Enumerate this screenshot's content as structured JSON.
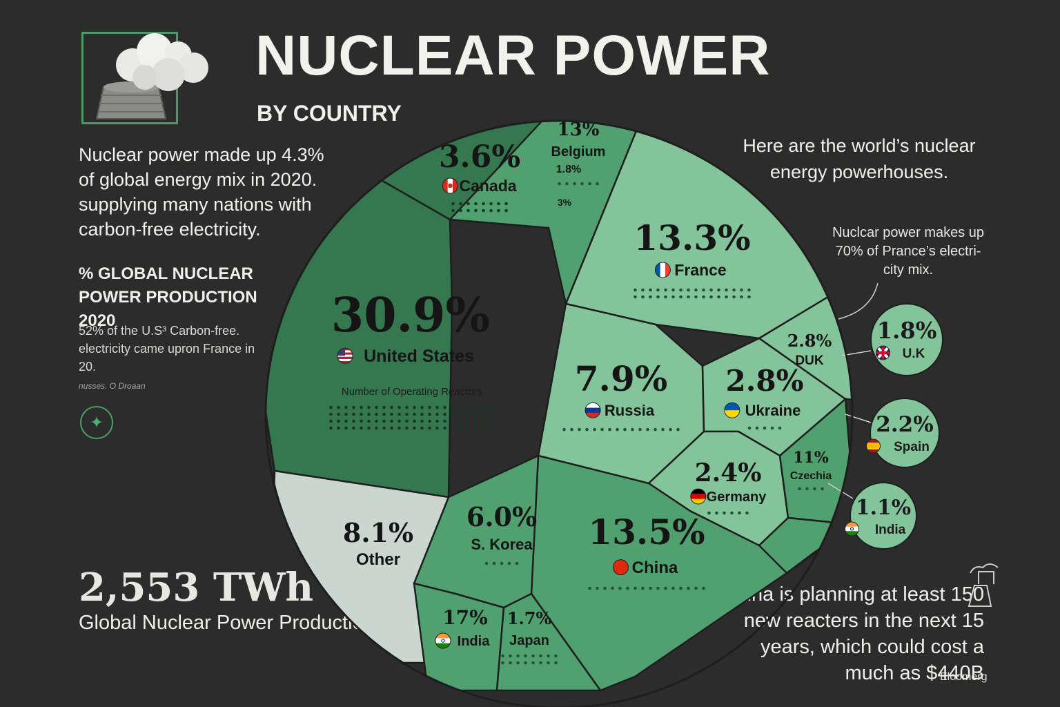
{
  "header": {
    "title": "NUCLEAR POWER",
    "subtitle": "BY COUNTRY"
  },
  "left_panel": {
    "intro": "Nuclear power made up 4.3% of global energy mix in 2020. supplying many nations with carbon-free electricity.",
    "section_heading": "% GLOBAL NUCLEAR POWER PRODUCTION 2020",
    "fact": "52% of the U.S³ Carbon-free. electricity came upron France in 20.",
    "fact_source": "nusses. O Droaan",
    "total_value": "2,553 TWh",
    "total_label": "Global Nuclear Power Production"
  },
  "right_panel": {
    "heading": "Here are the world’s nuclear energy powerhouses.",
    "france_note": "Nuclcar power makes up 70% of Prance’s electri- city mix.",
    "china_note": "China is planning at least 150 new reacters in the next 15 years, which could cost a much as $440B",
    "source": "Eloomerg"
  },
  "colors": {
    "background": "#2c2c2c",
    "dark_green": "#35774e",
    "mid_green": "#50a070",
    "light_green": "#84c49b",
    "other_gray": "#ccd6d0",
    "border": "#1e1e1e"
  },
  "icons": [
    "cooling-tower-icon",
    "lightning-bolt-icon",
    "reactor-plant-icon"
  ],
  "chart_data": {
    "type": "voronoi-treemap",
    "title": "NUCLEAR POWER",
    "subtitle": "BY COUNTRY",
    "metric": "% GLOBAL NUCLEAR POWER PRODUCTION 2020",
    "reactor_label": "Number of Operating Reactors",
    "cells": [
      {
        "id": "us",
        "label": "United States",
        "value_text": "30.9%",
        "value": 30.9,
        "color": "#35774e",
        "flag": "us"
      },
      {
        "id": "canada",
        "label": "Canada",
        "value_text": "3.6%",
        "value": 3.6,
        "color": "#35774e",
        "flag": "ca"
      },
      {
        "id": "belgium",
        "label": "Belgium",
        "value_text": "13%",
        "value": 13,
        "extra": [
          "1.8%",
          "3%"
        ],
        "color": "#50a070"
      },
      {
        "id": "france",
        "label": "France",
        "value_text": "13.3%",
        "value": 13.3,
        "color": "#84c49b",
        "flag": "fr"
      },
      {
        "id": "russia",
        "label": "Russia",
        "value_text": "7.9%",
        "value": 7.9,
        "color": "#84c49b",
        "flag": "ru"
      },
      {
        "id": "duk",
        "label": "DUK",
        "value_text": "2.8%",
        "value": 2.8,
        "color": "#84c49b"
      },
      {
        "id": "ukraine",
        "label": "Ukraine",
        "value_text": "2.8%",
        "value": 2.8,
        "color": "#84c49b",
        "flag": "ua"
      },
      {
        "id": "germany",
        "label": "Germany",
        "value_text": "2.4%",
        "value": 2.4,
        "color": "#84c49b",
        "flag": "de"
      },
      {
        "id": "czechia",
        "label": "Czechia",
        "value_text": "11%",
        "value": 11,
        "color": "#50a070"
      },
      {
        "id": "china",
        "label": "China",
        "value_text": "13.5%",
        "value": 13.5,
        "color": "#50a070",
        "flag": "cn"
      },
      {
        "id": "skorea",
        "label": "S. Korea",
        "value_text": "6.0%",
        "value": 6.0,
        "color": "#50a070"
      },
      {
        "id": "other",
        "label": "Other",
        "value_text": "8.1%",
        "value": 8.1,
        "color": "#ccd6d0"
      },
      {
        "id": "india",
        "label": "India",
        "value_text": "17%",
        "value": 17,
        "color": "#50a070",
        "flag": "in"
      },
      {
        "id": "japan",
        "label": "Japan",
        "value_text": "1.7%",
        "value": 1.7,
        "color": "#50a070"
      }
    ],
    "callouts": [
      {
        "id": "uk",
        "label": "U.K",
        "value_text": "1.8%",
        "value": 1.8,
        "flag": "uk"
      },
      {
        "id": "spain",
        "label": "Spain",
        "value_text": "2.2%",
        "value": 2.2,
        "flag": "es"
      },
      {
        "id": "india2",
        "label": "India",
        "value_text": "1.1%",
        "value": 1.1,
        "flag": "in"
      }
    ]
  }
}
